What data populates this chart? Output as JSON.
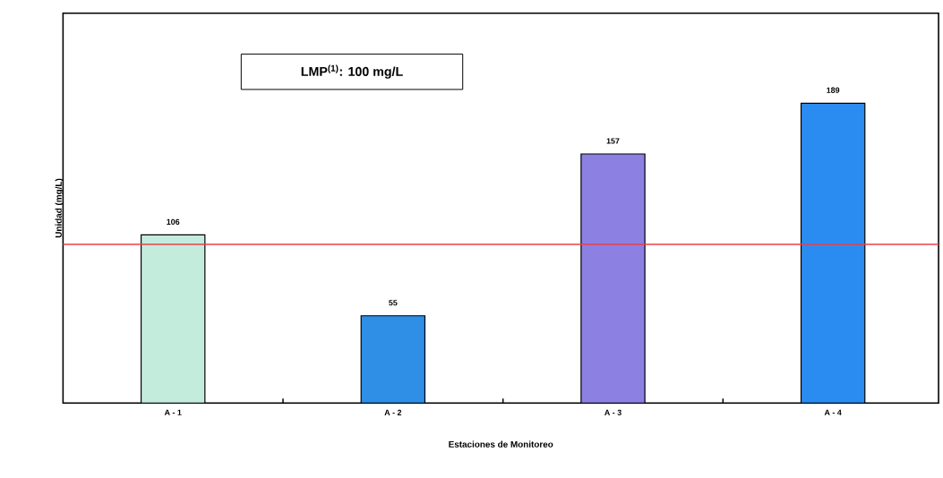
{
  "chart_data": {
    "type": "bar",
    "xlabel": "Estaciones de Monitoreo",
    "ylabel": "Unidad (mg/L)",
    "categories": [
      "A - 1",
      "A - 2",
      "A - 3",
      "A - 4"
    ],
    "values": [
      106,
      55,
      157,
      189
    ],
    "colors": [
      "#c4ecdc",
      "#2f8ee6",
      "#8c80e2",
      "#2a8cf0"
    ],
    "relative": false,
    "data_labels": true,
    "annotations": [
      "LMP$^{(1)}$: 100 mg/L"
    ],
    "ref_lines": [
      {
        "axis": "y",
        "value": 100,
        "color": "#e8404a"
      }
    ]
  }
}
